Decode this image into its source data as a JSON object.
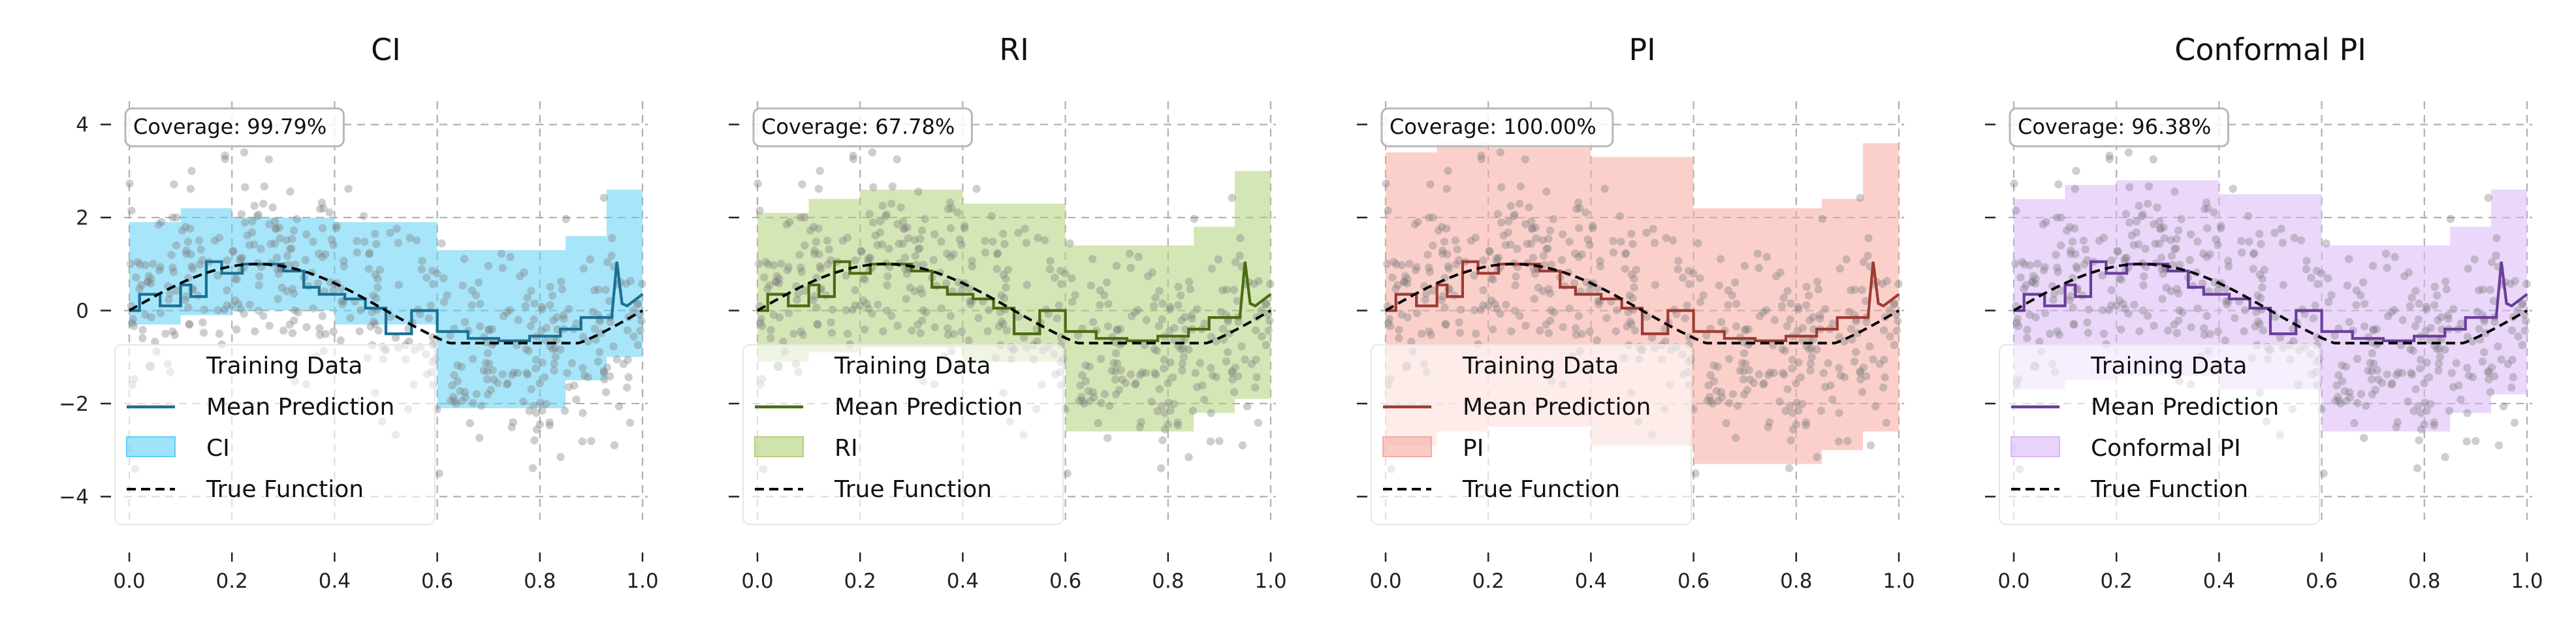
{
  "chart_data": [
    {
      "type": "line",
      "title": "CI",
      "coverage_text": "Coverage: 99.79%",
      "band_label": "CI",
      "color": "#1b6f94",
      "band_color": "#5fd0f5",
      "xlim": [
        0.0,
        1.0
      ],
      "ylim": [
        -4.5,
        4.5
      ],
      "x_ticks": [
        "0.0",
        "0.2",
        "0.4",
        "0.6",
        "0.8",
        "1.0"
      ],
      "y_ticks": [
        "4",
        "2",
        "0",
        "−2",
        "−4"
      ],
      "show_y_tick_labels": true,
      "grid": true,
      "legend_position": "lower-left",
      "legend": [
        "Training Data",
        "Mean Prediction",
        "CI",
        "True Function"
      ],
      "bands": [
        {
          "x": [
            0.0,
            0.1
          ],
          "lower": -0.3,
          "upper": 1.9
        },
        {
          "x": [
            0.1,
            0.2
          ],
          "lower": -0.1,
          "upper": 2.2
        },
        {
          "x": [
            0.2,
            0.4
          ],
          "lower": 0.0,
          "upper": 2.0
        },
        {
          "x": [
            0.4,
            0.6
          ],
          "lower": -0.3,
          "upper": 1.9
        },
        {
          "x": [
            0.6,
            0.85
          ],
          "lower": -2.1,
          "upper": 1.3
        },
        {
          "x": [
            0.85,
            0.93
          ],
          "lower": -1.5,
          "upper": 1.6
        },
        {
          "x": [
            0.93,
            1.0
          ],
          "lower": -1.0,
          "upper": 2.6
        }
      ]
    },
    {
      "type": "line",
      "title": "RI",
      "coverage_text": "Coverage: 67.78%",
      "band_label": "RI",
      "color": "#4a6b13",
      "band_color": "#b3d17a",
      "xlim": [
        0.0,
        1.0
      ],
      "ylim": [
        -4.5,
        4.5
      ],
      "x_ticks": [
        "0.0",
        "0.2",
        "0.4",
        "0.6",
        "0.8",
        "1.0"
      ],
      "y_ticks": [
        "4",
        "2",
        "0",
        "−2",
        "−4"
      ],
      "show_y_tick_labels": false,
      "grid": true,
      "legend_position": "lower-left",
      "legend": [
        "Training Data",
        "Mean Prediction",
        "RI",
        "True Function"
      ],
      "bands": [
        {
          "x": [
            0.0,
            0.1
          ],
          "lower": -1.1,
          "upper": 2.1
        },
        {
          "x": [
            0.1,
            0.2
          ],
          "lower": -0.9,
          "upper": 2.4
        },
        {
          "x": [
            0.2,
            0.4
          ],
          "lower": -0.8,
          "upper": 2.6
        },
        {
          "x": [
            0.4,
            0.6
          ],
          "lower": -1.1,
          "upper": 2.3
        },
        {
          "x": [
            0.6,
            0.85
          ],
          "lower": -2.6,
          "upper": 1.4
        },
        {
          "x": [
            0.85,
            0.93
          ],
          "lower": -2.2,
          "upper": 1.8
        },
        {
          "x": [
            0.93,
            1.0
          ],
          "lower": -1.9,
          "upper": 3.0
        }
      ]
    },
    {
      "type": "line",
      "title": "PI",
      "coverage_text": "Coverage: 100.00%",
      "band_label": "PI",
      "color": "#9e3b32",
      "band_color": "#f7aaa0",
      "xlim": [
        0.0,
        1.0
      ],
      "ylim": [
        -4.5,
        4.5
      ],
      "x_ticks": [
        "0.0",
        "0.2",
        "0.4",
        "0.6",
        "0.8",
        "1.0"
      ],
      "y_ticks": [
        "4",
        "2",
        "0",
        "−2",
        "−4"
      ],
      "show_y_tick_labels": false,
      "grid": true,
      "legend_position": "lower-left",
      "legend": [
        "Training Data",
        "Mean Prediction",
        "PI",
        "True Function"
      ],
      "bands": [
        {
          "x": [
            0.0,
            0.1
          ],
          "lower": -2.9,
          "upper": 3.4
        },
        {
          "x": [
            0.1,
            0.2
          ],
          "lower": -2.6,
          "upper": 3.6
        },
        {
          "x": [
            0.2,
            0.4
          ],
          "lower": -2.5,
          "upper": 3.5
        },
        {
          "x": [
            0.4,
            0.6
          ],
          "lower": -2.9,
          "upper": 3.3
        },
        {
          "x": [
            0.6,
            0.85
          ],
          "lower": -3.3,
          "upper": 2.2
        },
        {
          "x": [
            0.85,
            0.93
          ],
          "lower": -3.0,
          "upper": 2.4
        },
        {
          "x": [
            0.93,
            1.0
          ],
          "lower": -2.6,
          "upper": 3.6
        }
      ]
    },
    {
      "type": "line",
      "title": "Conformal PI",
      "coverage_text": "Coverage: 96.38%",
      "band_label": "Conformal PI",
      "color": "#6a3d9a",
      "band_color": "#d9b7f5",
      "xlim": [
        0.0,
        1.0
      ],
      "ylim": [
        -4.5,
        4.5
      ],
      "x_ticks": [
        "0.0",
        "0.2",
        "0.4",
        "0.6",
        "0.8",
        "1.0"
      ],
      "y_ticks": [
        "4",
        "2",
        "0",
        "−2",
        "−4"
      ],
      "show_y_tick_labels": false,
      "grid": true,
      "legend_position": "lower-left",
      "legend": [
        "Training Data",
        "Mean Prediction",
        "Conformal PI",
        "True Function"
      ],
      "bands": [
        {
          "x": [
            0.0,
            0.1
          ],
          "lower": -1.7,
          "upper": 2.4
        },
        {
          "x": [
            0.1,
            0.2
          ],
          "lower": -1.5,
          "upper": 2.7
        },
        {
          "x": [
            0.2,
            0.4
          ],
          "lower": -1.4,
          "upper": 2.8
        },
        {
          "x": [
            0.4,
            0.6
          ],
          "lower": -1.7,
          "upper": 2.5
        },
        {
          "x": [
            0.6,
            0.85
          ],
          "lower": -2.6,
          "upper": 1.4
        },
        {
          "x": [
            0.85,
            0.93
          ],
          "lower": -2.2,
          "upper": 1.8
        },
        {
          "x": [
            0.93,
            1.0
          ],
          "lower": -1.8,
          "upper": 2.6
        }
      ]
    }
  ],
  "mean_prediction": {
    "x": [
      0.0,
      0.02,
      0.02,
      0.06,
      0.06,
      0.1,
      0.1,
      0.12,
      0.12,
      0.15,
      0.15,
      0.18,
      0.18,
      0.22,
      0.22,
      0.3,
      0.3,
      0.34,
      0.34,
      0.37,
      0.37,
      0.42,
      0.42,
      0.46,
      0.46,
      0.5,
      0.5,
      0.55,
      0.55,
      0.6,
      0.6,
      0.66,
      0.66,
      0.72,
      0.72,
      0.78,
      0.78,
      0.84,
      0.84,
      0.88,
      0.88,
      0.94,
      0.95,
      0.96,
      0.97,
      1.0
    ],
    "y": [
      0.0,
      0.0,
      0.35,
      0.35,
      0.1,
      0.1,
      0.55,
      0.55,
      0.3,
      0.3,
      1.05,
      1.05,
      0.8,
      0.8,
      1.0,
      1.0,
      0.85,
      0.85,
      0.5,
      0.5,
      0.35,
      0.35,
      0.25,
      0.25,
      0.05,
      0.05,
      -0.5,
      -0.5,
      0.0,
      0.0,
      -0.45,
      -0.45,
      -0.6,
      -0.6,
      -0.65,
      -0.65,
      -0.55,
      -0.55,
      -0.4,
      -0.4,
      -0.15,
      -0.15,
      1.05,
      0.15,
      0.1,
      0.35
    ]
  },
  "true_function": {
    "expression": "sin(2πx)",
    "x_range": [
      0.0,
      1.0
    ],
    "amplitude": 1.0,
    "note_min": -0.7
  },
  "training_data": {
    "count": 480,
    "x_range": [
      0.0,
      1.0
    ],
    "noise_sd": 1.0
  }
}
